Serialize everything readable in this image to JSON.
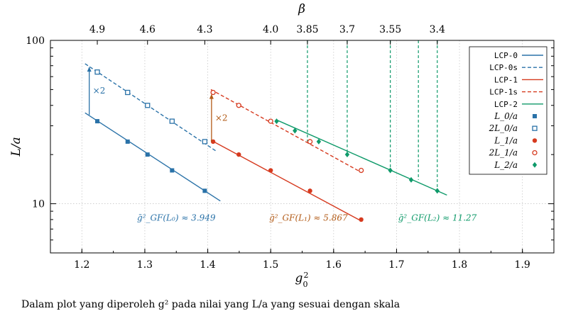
{
  "chart_data": {
    "type": "line",
    "xlabel": "g_0^2",
    "ylabel": "L/a",
    "top_axis_label": "β",
    "xlim": [
      1.15,
      1.95
    ],
    "ylim": [
      5,
      100
    ],
    "y_scale": "log",
    "x_ticks": [
      "1.2",
      "1.3",
      "1.4",
      "1.5",
      "1.6",
      "1.7",
      "1.8",
      "1.9"
    ],
    "y_ticks": [
      "10",
      "100"
    ],
    "top_ticks": [
      {
        "label": "4.9",
        "g2": 1.2245
      },
      {
        "label": "4.6",
        "g2": 1.3043
      },
      {
        "label": "4.3",
        "g2": 1.3953
      },
      {
        "label": "4.0",
        "g2": 1.5
      },
      {
        "label": "3.85",
        "g2": 1.5584
      },
      {
        "label": "3.7",
        "g2": 1.6216
      },
      {
        "label": "3.55",
        "g2": 1.6901
      },
      {
        "label": "3.4",
        "g2": 1.7647
      }
    ],
    "grid": true,
    "legend_position": "top-right",
    "colors": {
      "blue": "#2a72a8",
      "red": "#d63a1f",
      "green": "#0f9a6a",
      "orange": "#b25a16"
    },
    "series": [
      {
        "name": "LCP-0",
        "kind": "line",
        "color": "#2a72a8",
        "dash": false,
        "x": [
          1.205,
          1.42
        ],
        "y": [
          36,
          10.4
        ]
      },
      {
        "name": "LCP-0s",
        "kind": "line",
        "color": "#2a72a8",
        "dash": true,
        "x": [
          1.205,
          1.415
        ],
        "y": [
          72,
          20.8
        ]
      },
      {
        "name": "LCP-1",
        "kind": "line",
        "color": "#d63a1f",
        "dash": false,
        "x": [
          1.405,
          1.645
        ],
        "y": [
          24.5,
          7.8
        ]
      },
      {
        "name": "LCP-1s",
        "kind": "line",
        "color": "#d63a1f",
        "dash": true,
        "x": [
          1.405,
          1.645
        ],
        "y": [
          50,
          15.5
        ]
      },
      {
        "name": "LCP-2",
        "kind": "line",
        "color": "#0f9a6a",
        "dash": false,
        "x": [
          1.51,
          1.78
        ],
        "y": [
          32.5,
          11.3
        ]
      },
      {
        "name": "L_0/a",
        "kind": "marker",
        "marker": "square-filled",
        "color": "#2a72a8",
        "x": [
          1.2245,
          1.2727,
          1.3043,
          1.3433,
          1.3953
        ],
        "y": [
          32,
          24,
          20,
          16,
          12
        ]
      },
      {
        "name": "2L_0/a",
        "kind": "marker",
        "marker": "square-open",
        "color": "#2a72a8",
        "x": [
          1.2245,
          1.2727,
          1.3043,
          1.3433,
          1.3953
        ],
        "y": [
          64,
          48,
          40,
          32,
          24
        ]
      },
      {
        "name": "L_1/a",
        "kind": "marker",
        "marker": "circle-filled",
        "color": "#d63a1f",
        "x": [
          1.4085,
          1.4493,
          1.5,
          1.5625,
          1.6438
        ],
        "y": [
          24,
          20,
          16,
          12,
          8
        ]
      },
      {
        "name": "2L_1/a",
        "kind": "marker",
        "marker": "circle-open",
        "color": "#d63a1f",
        "x": [
          1.4085,
          1.4493,
          1.5,
          1.5625,
          1.6438
        ],
        "y": [
          48,
          40,
          32,
          24,
          16
        ]
      },
      {
        "name": "L_2/a",
        "kind": "marker",
        "marker": "diamond-filled",
        "color": "#0f9a6a",
        "x": [
          1.5094,
          1.5385,
          1.5764,
          1.6216,
          1.6901,
          1.7232,
          1.7647
        ],
        "y": [
          32,
          28,
          24,
          20,
          16,
          14,
          12
        ]
      }
    ],
    "vertical_dashed_lines": {
      "color": "#0f9a6a",
      "x": [
        1.5584,
        1.6216,
        1.6901,
        1.7347,
        1.7647
      ],
      "y_top": 100
    },
    "scaling_arrows": [
      {
        "label": "×2",
        "color": "#2a72a8",
        "x": 1.2117,
        "y_from": 35,
        "y_to": 69
      },
      {
        "label": "×2",
        "color": "#b25a16",
        "x": 1.406,
        "y_from": 24,
        "y_to": 47
      }
    ],
    "annotations": [
      {
        "text": "ḡ²_GF(L₀) ≈ 3.949",
        "color": "#2a72a8",
        "x": 1.35,
        "y": 8.2
      },
      {
        "text": "ḡ²_GF(L₁) ≈ 5.867",
        "color": "#b25a16",
        "x": 1.56,
        "y": 8.2
      },
      {
        "text": "ḡ²_GF(L₂) ≈ 11.27",
        "color": "#0f9a6a",
        "x": 1.765,
        "y": 8.2
      }
    ]
  },
  "caption_fragment": "Dalam plot yang diperoleh g² pada nilai yang L/a yang sesuai dengan skala"
}
